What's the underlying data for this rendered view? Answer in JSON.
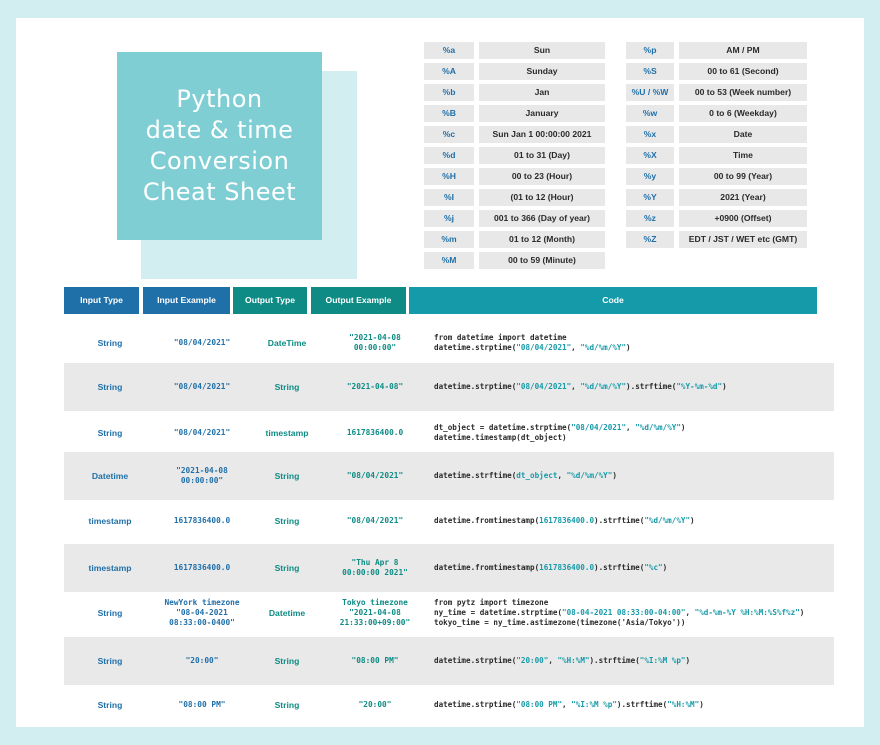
{
  "title": {
    "lines": [
      "Python",
      "date & time",
      "Conversion",
      "Cheat Sheet"
    ]
  },
  "format_left": [
    {
      "code": "%a",
      "desc": "Sun"
    },
    {
      "code": "%A",
      "desc": "Sunday"
    },
    {
      "code": "%b",
      "desc": "Jan"
    },
    {
      "code": "%B",
      "desc": "January"
    },
    {
      "code": "%c",
      "desc": "Sun Jan 1 00:00:00 2021"
    },
    {
      "code": "%d",
      "desc": "01 to 31 (Day)"
    },
    {
      "code": "%H",
      "desc": "00 to 23 (Hour)"
    },
    {
      "code": "%I",
      "desc": "(01 to 12 (Hour)"
    },
    {
      "code": "%j",
      "desc": "001 to 366 (Day of year)"
    },
    {
      "code": "%m",
      "desc": "01 to 12 (Month)"
    },
    {
      "code": "%M",
      "desc": "00 to 59 (Minute)"
    }
  ],
  "format_right": [
    {
      "code": "%p",
      "desc": "AM / PM"
    },
    {
      "code": "%S",
      "desc": "00 to 61 (Second)"
    },
    {
      "code": "%U / %W",
      "desc": "00 to 53 (Week number)"
    },
    {
      "code": "%w",
      "desc": "0 to 6 (Weekday)"
    },
    {
      "code": "%x",
      "desc": "Date"
    },
    {
      "code": "%X",
      "desc": "Time"
    },
    {
      "code": "%y",
      "desc": "00 to 99 (Year)"
    },
    {
      "code": "%Y",
      "desc": "2021 (Year)"
    },
    {
      "code": "%z",
      "desc": "+0900 (Offset)"
    },
    {
      "code": "%Z",
      "desc": "EDT / JST / WET etc  (GMT)"
    }
  ],
  "table": {
    "headers": [
      "Input Type",
      "Input Example",
      "Output Type",
      "Output Example",
      "Code"
    ],
    "rows": [
      {
        "input_type": "String",
        "input_example": "\"08/04/2021\"",
        "output_type": "DateTime",
        "output_example": "\"2021-04-08\n00:00:00\"",
        "code": [
          [
            [
              "from datetime import datetime",
              ""
            ]
          ],
          [
            [
              "datetime.strptime(",
              ""
            ],
            [
              "\"08/04/2021\"",
              "hl"
            ],
            [
              ", ",
              ""
            ],
            [
              "\"%d/%m/%Y\"",
              "hl"
            ],
            [
              ")",
              ""
            ]
          ]
        ]
      },
      {
        "input_type": "String",
        "input_example": "\"08/04/2021\"",
        "output_type": "String",
        "output_example": "\"2021-04-08\"",
        "code": [
          [
            [
              "datetime.strptime(",
              ""
            ],
            [
              "\"08/04/2021\"",
              "hl"
            ],
            [
              ", ",
              ""
            ],
            [
              "\"%d/%m/%Y\"",
              "hl"
            ],
            [
              ").strftime(",
              ""
            ],
            [
              "\"%Y-%m-%d\"",
              "hl"
            ],
            [
              ")",
              ""
            ]
          ]
        ]
      },
      {
        "input_type": "String",
        "input_example": "\"08/04/2021\"",
        "output_type": "timestamp",
        "output_example": "1617836400.0",
        "code": [
          [
            [
              "dt_object = datetime.strptime(",
              ""
            ],
            [
              "\"08/04/2021\"",
              "hl"
            ],
            [
              ", ",
              ""
            ],
            [
              "\"%d/%m/%Y\"",
              "hl"
            ],
            [
              ")",
              ""
            ]
          ],
          [
            [
              "datetime.timestamp(dt_object)",
              ""
            ]
          ]
        ]
      },
      {
        "input_type": "Datetime",
        "input_example": "\"2021-04-08\n00:00:00\"",
        "output_type": "String",
        "output_example": "\"08/04/2021\"",
        "code": [
          [
            [
              "datetime.strftime(",
              ""
            ],
            [
              "dt_object",
              "hl"
            ],
            [
              ", ",
              ""
            ],
            [
              "\"%d/%m/%Y\"",
              "hl"
            ],
            [
              ")",
              ""
            ]
          ]
        ]
      },
      {
        "input_type": "timestamp",
        "input_example": "1617836400.0",
        "output_type": "String",
        "output_example": "\"08/04/2021\"",
        "code": [
          [
            [
              "datetime.fromtimestamp(",
              ""
            ],
            [
              "1617836400.0",
              "hl"
            ],
            [
              ").strftime(",
              ""
            ],
            [
              "\"%d/%m/%Y\"",
              "hl"
            ],
            [
              ")",
              ""
            ]
          ]
        ]
      },
      {
        "input_type": "timestamp",
        "input_example": "1617836400.0",
        "output_type": "String",
        "output_example": "\"Thu Apr 8\n00:00:00 2021\"",
        "code": [
          [
            [
              "datetime.fromtimestamp(",
              ""
            ],
            [
              "1617836400.0",
              "hl"
            ],
            [
              ").strftime(",
              ""
            ],
            [
              "\"%c\"",
              "hl"
            ],
            [
              ")",
              ""
            ]
          ]
        ]
      },
      {
        "input_type": "String",
        "input_example": "NewYork timezone\n\"08-04-2021\n08:33:00-0400\"",
        "output_type": "Datetime",
        "output_example": "Tokyo timezone\n\"2021-04-08\n21:33:00+09:00\"",
        "code": [
          [
            [
              "from pytz import timezone",
              ""
            ]
          ],
          [
            [
              "ny_time = datetime.strptime(",
              ""
            ],
            [
              "\"08-04-2021 08:33:00-04:00\"",
              "hl"
            ],
            [
              ", ",
              ""
            ],
            [
              "\"%d-%m-%Y %H:%M:%S%f%z\"",
              "hl"
            ],
            [
              ")",
              ""
            ]
          ],
          [
            [
              "tokyo_time = ny_time.astimezone(timezone('Asia/Tokyo'))",
              ""
            ]
          ]
        ]
      },
      {
        "input_type": "String",
        "input_example": "\"20:00\"",
        "output_type": "String",
        "output_example": "\"08:00 PM\"",
        "code": [
          [
            [
              "datetime.strptime(",
              ""
            ],
            [
              "\"20:00\"",
              "hl"
            ],
            [
              ", ",
              ""
            ],
            [
              "\"%H:%M\"",
              "hl"
            ],
            [
              ").strftime(",
              ""
            ],
            [
              "\"%I:%M %p\"",
              "hl"
            ],
            [
              ")",
              ""
            ]
          ]
        ]
      },
      {
        "input_type": "String",
        "input_example": "\"08:00 PM\"",
        "output_type": "String",
        "output_example": "\"20:00\"",
        "code": [
          [
            [
              "datetime.strptime(",
              ""
            ],
            [
              "\"08:00 PM\"",
              "hl"
            ],
            [
              ", ",
              ""
            ],
            [
              "\"%I:%M %p\"",
              "hl"
            ],
            [
              ").strftime(",
              ""
            ],
            [
              "\"%H:%M\"",
              "hl"
            ],
            [
              ")",
              ""
            ]
          ]
        ]
      }
    ]
  },
  "colors": {
    "background": "#d3eef0",
    "title_box": "#7fced3",
    "header_blue": "#1f6fa8",
    "header_teal": "#0d8b84",
    "header_cyan": "#149aa8",
    "row_shade": "#e9e9e9",
    "code_highlight": "#149aa8"
  }
}
